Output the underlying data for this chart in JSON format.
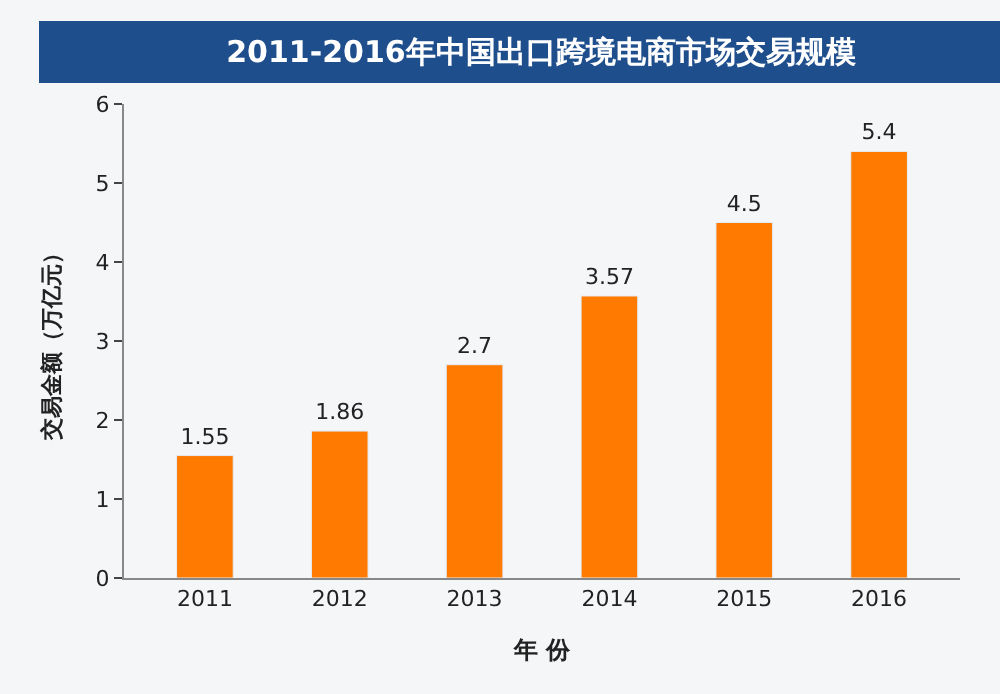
{
  "chart_data": {
    "type": "bar",
    "title": "2011-2016年中国出口跨境电商市场交易规模",
    "categories": [
      "2011",
      "2012",
      "2013",
      "2014",
      "2015",
      "2016"
    ],
    "values": [
      1.55,
      1.86,
      2.7,
      3.57,
      4.5,
      5.4
    ],
    "color": "#ff7a00",
    "xlabel": "年 份",
    "ylabel": "交易金额（万亿元）",
    "ylim": [
      0,
      6
    ],
    "yticks": [
      0,
      1,
      2,
      3,
      4,
      5,
      6
    ],
    "grid": false,
    "legend": false,
    "data_labels": true
  }
}
